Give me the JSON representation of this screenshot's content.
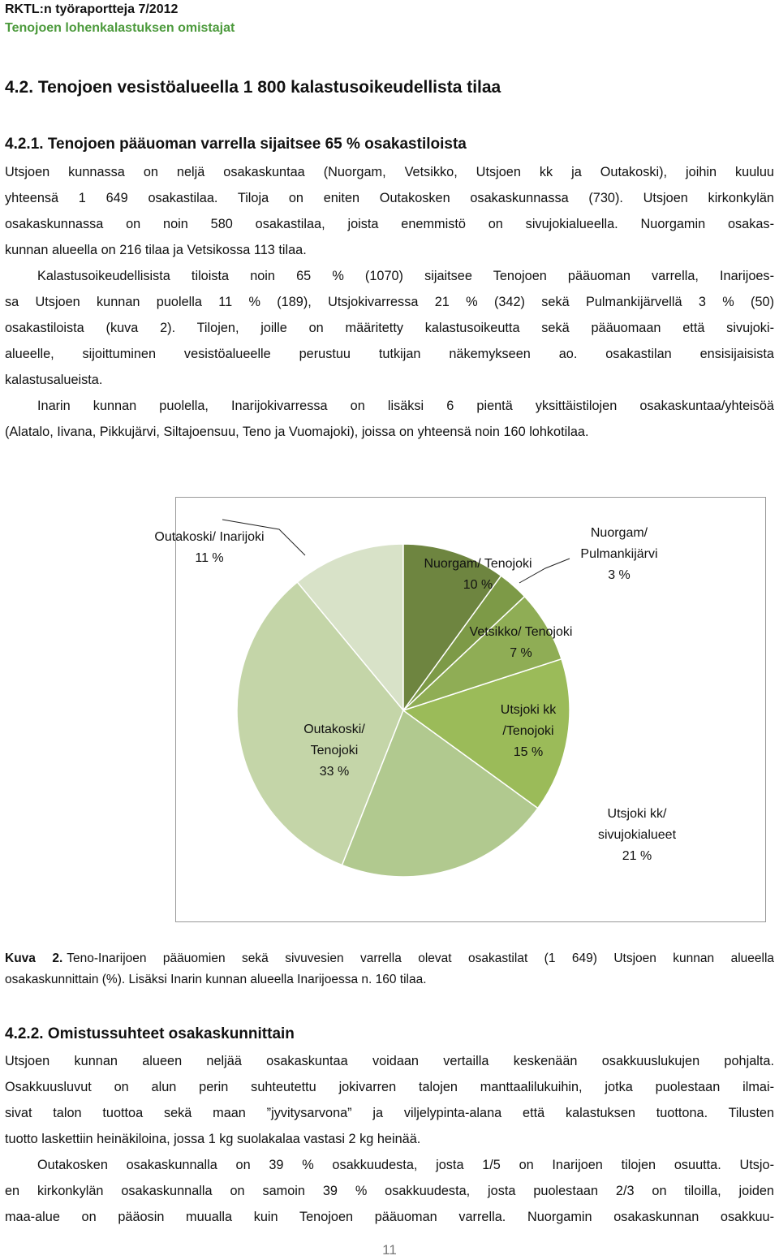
{
  "header": {
    "series": "RKTL:n työraportteja 7/2012",
    "title": "Tenojoen lohenkalastuksen omistajat"
  },
  "section_heading": "4.2. Tenojoen vesistöalueella 1 800 kalastusoikeudellista tilaa",
  "section_1": {
    "heading": "4.2.1. Tenojoen pääuoman varrella sijaitsee 65 % osakastiloista",
    "paragraphs": [
      [
        "Utsjoen kunnassa on neljä osakaskuntaa (Nuorgam, Vetsikko, Utsjoen kk ja Outakoski), joihin kuuluu",
        "yhteensä 1 649 osakastilaa. Tiloja on eniten Outakosken osakaskunnassa (730). Utsjoen kirkonkylän",
        "osakaskunnassa on noin 580 osakastilaa, joista enemmistö on sivujokialueella. Nuorgamin osakas-",
        "kunnan alueella on 216 tilaa ja Vetsikossa 113 tilaa."
      ],
      [
        "Kalastusoikeudellisista tiloista noin 65 % (1070) sijaitsee Tenojoen pääuoman varrella, Inarijoes-",
        "sa Utsjoen kunnan puolella 11 % (189), Utsjokivarressa 21 % (342) sekä Pulmankijärvellä 3 % (50)",
        "osakastiloista (kuva 2). Tilojen, joille on määritetty kalastusoikeutta sekä pääuomaan että sivujoki-",
        "alueelle, sijoittuminen vesistöalueelle perustuu tutkijan näkemykseen ao. osakastilan ensisijaisista",
        "kalastusalueista."
      ],
      [
        "Inarin kunnan puolella, Inarijokivarressa on lisäksi 6 pientä yksittäistilojen osakaskuntaa/yhteisöä",
        "(Alatalo, Iivana, Pikkujärvi, Siltajoensuu, Teno ja Vuomajoki), joissa on yhteensä noin 160 lohkotilaa."
      ]
    ]
  },
  "chart_data": {
    "type": "pie",
    "categories": [
      "Nuorgam/ Tenojoki",
      "Nuorgam/ Pulmankijärvi",
      "Vetsikko/ Tenojoki",
      "Utsjoki kk /Tenojoki",
      "Utsjoki kk/ sivujokialueet",
      "Outakoski/ Tenojoki",
      "Outakoski/ Inarijoki"
    ],
    "values": [
      10,
      3,
      7,
      15,
      21,
      33,
      11
    ],
    "value_labels": [
      "10 %",
      "3 %",
      "7 %",
      "15 %",
      "21 %",
      "33 %",
      "11 %"
    ],
    "colors": [
      "#6e8540",
      "#7d9a47",
      "#8fad55",
      "#9bbb59",
      "#b1c98f",
      "#c4d5a8",
      "#d8e2c8"
    ]
  },
  "caption": {
    "label": "Kuva 2.",
    "lines": [
      "Teno-Inarijoen pääuomien sekä sivuvesien varrella olevat osakastilat (1 649) Utsjoen kunnan alueella",
      "osakaskunnittain (%). Lisäksi Inarin kunnan alueella Inarijoessa n. 160 tilaa."
    ]
  },
  "section_2": {
    "heading": "4.2.2. Omistussuhteet osakaskunnittain",
    "paragraphs": [
      [
        "Utsjoen kunnan alueen neljää osakaskuntaa voidaan vertailla keskenään osakkuuslukujen pohjalta.",
        "Osakkuusluvut on alun perin suhteutettu jokivarren talojen manttaalilukuihin, jotka puolestaan ilmai-",
        "sivat talon tuottoa sekä maan ”jyvitysarvona” ja viljelypinta-alana että kalastuksen tuottona. Tilusten",
        "tuotto laskettiin heinäkiloina, jossa 1 kg suolakalaa vastasi 2 kg heinää."
      ],
      [
        "Outakosken osakaskunnalla on 39 % osakkuudesta, josta 1/5 on Inarijoen tilojen osuutta. Utsjo-",
        "en kirkonkylän osakaskunnalla on samoin 39 % osakkuudesta, josta puolestaan 2/3 on tiloilla, joiden",
        "maa-alue on pääosin muualla kuin Tenojoen pääuoman varrella. Nuorgamin osakaskunnan osakkuu-"
      ]
    ]
  },
  "page_number": "11"
}
